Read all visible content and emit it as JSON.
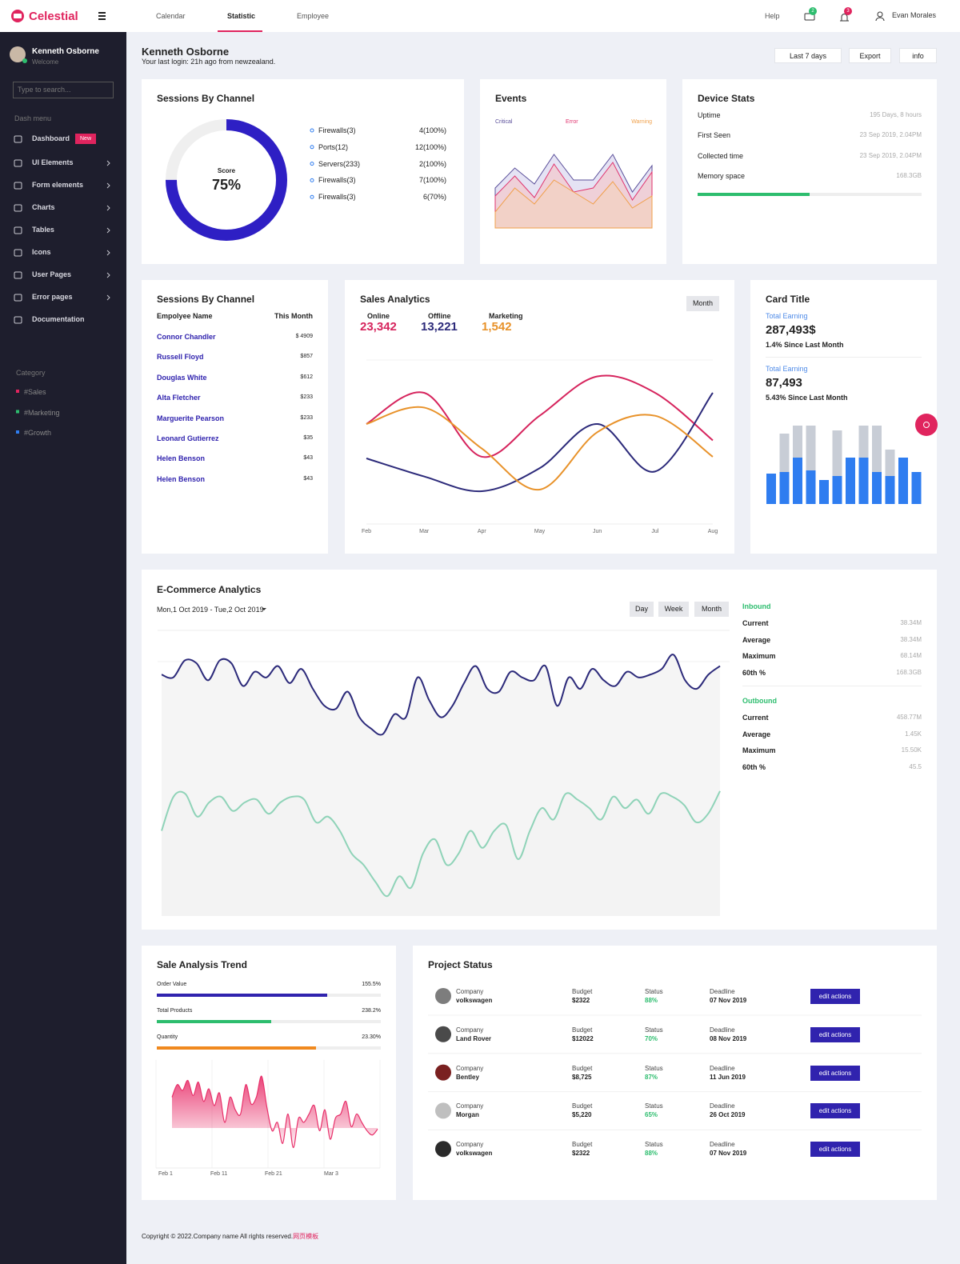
{
  "topbar": {
    "brand": "Celestial",
    "nav": [
      "Calendar",
      "Statistic",
      "Employee"
    ],
    "help": "Help",
    "message_badge": 2,
    "notification_badge": 3,
    "user": "Evan Morales"
  },
  "sidebar": {
    "user": "Kenneth Osborne",
    "greeting": "Welcome",
    "search_placeholder": "Type to search...",
    "menu_title": "Dash menu",
    "menu": [
      {
        "label": "Dashboard",
        "badge": "New"
      },
      {
        "label": "UI Elements"
      },
      {
        "label": "Form elements"
      },
      {
        "label": "Charts"
      },
      {
        "label": "Tables"
      },
      {
        "label": "Icons"
      },
      {
        "label": "User Pages"
      },
      {
        "label": "Error pages"
      },
      {
        "label": "Documentation"
      }
    ],
    "category_title": "Category",
    "categories": [
      "#Sales",
      "#Marketing",
      "#Growth"
    ]
  },
  "header": {
    "title": "Kenneth Osborne",
    "subtitle": "Your last login: 21h ago from newzealand.",
    "buttons": [
      "Last 7 days",
      "Export",
      "info"
    ]
  },
  "sessions": {
    "title": "Sessions By Channel",
    "score_label": "Score",
    "score": 75,
    "score_text": "75%",
    "channels": [
      {
        "name": "Firewalls(3)",
        "value": "4(100%)"
      },
      {
        "name": "Ports(12)",
        "value": "12(100%)"
      },
      {
        "name": "Servers(233)",
        "value": "2(100%)"
      },
      {
        "name": "Firewalls(3)",
        "value": "7(100%)"
      },
      {
        "name": "Firewalls(3)",
        "value": "6(70%)"
      }
    ]
  },
  "events": {
    "title": "Events",
    "ylim": [
      0,
      100
    ],
    "series": [
      {
        "name": "Critical",
        "color": "#5a4f9a",
        "fill": "#dcdaf0",
        "values": [
          50,
          75,
          55,
          92,
          60,
          60,
          92,
          45,
          78
        ]
      },
      {
        "name": "Error",
        "color": "#e0336e",
        "fill": "#f2c9cf",
        "values": [
          40,
          65,
          38,
          80,
          45,
          50,
          82,
          35,
          70
        ]
      },
      {
        "name": "Warning",
        "color": "#f0a04b",
        "fill": "#f3d2c2",
        "values": [
          20,
          50,
          30,
          60,
          45,
          30,
          58,
          25,
          40
        ]
      }
    ]
  },
  "device_stats": {
    "title": "Device Stats",
    "rows": [
      {
        "label": "Uptime",
        "value": "195 Days, 8 hours"
      },
      {
        "label": "First Seen",
        "value": "23 Sep 2019, 2.04PM"
      },
      {
        "label": "Collected time",
        "value": "23 Sep 2019, 2.04PM"
      },
      {
        "label": "Memory space",
        "value": "168.3GB"
      }
    ],
    "memory_used": 50
  },
  "employees": {
    "title": "Sessions By Channel",
    "headers": [
      "Empolyee Name",
      "This Month"
    ],
    "rows": [
      [
        "Connor Chandler",
        "$ 4909"
      ],
      [
        "Russell Floyd",
        "$857"
      ],
      [
        "Douglas White",
        "$612"
      ],
      [
        "Alta Fletcher",
        "$233"
      ],
      [
        "Marguerite Pearson",
        "$233"
      ],
      [
        "Leonard Gutierrez",
        "$35"
      ],
      [
        "Helen Benson",
        "$43"
      ],
      [
        "Helen Benson",
        "$43"
      ]
    ]
  },
  "sales_analytics": {
    "title": "Sales Analytics",
    "button": "Month",
    "categories": [
      "Feb",
      "Mar",
      "Apr",
      "May",
      "Jun",
      "Jul",
      "Aug"
    ],
    "ylim": [
      0,
      100
    ],
    "series": [
      {
        "name": "Online",
        "total": "23,342",
        "color": "#d6245d",
        "values": [
          61,
          80,
          41,
          66,
          90,
          80,
          51
        ]
      },
      {
        "name": "Offline",
        "total": "13,221",
        "color": "#2c2a7a",
        "values": [
          40,
          29,
          20,
          34,
          61,
          32,
          80
        ]
      },
      {
        "name": "Marketing",
        "total": "1,542",
        "color": "#e8922a",
        "values": [
          61,
          71,
          46,
          21,
          56,
          66,
          41
        ]
      }
    ]
  },
  "card": {
    "title": "Card Title",
    "earnings": [
      {
        "label": "Total Earning",
        "value": "287,493$",
        "change": "1.4% Since Last Month"
      },
      {
        "label": "Total Earning",
        "value": "87,493",
        "change": "5.43% Since Last Month"
      }
    ],
    "ylim": [
      0,
      100
    ],
    "totals": [
      30,
      88,
      98,
      98,
      30,
      92,
      58,
      98,
      98,
      68,
      58,
      30
    ],
    "values": [
      38,
      40,
      58,
      42,
      30,
      35,
      58,
      58,
      40,
      35,
      58,
      40
    ],
    "total_color": "#c8cdd6",
    "value_color": "#2f7df0"
  },
  "ecommerce": {
    "title": "E-Commerce Analytics",
    "date_range": "Mon,1 Oct 2019 - Tue,2 Oct 2019",
    "buttons": [
      "Day",
      "Week",
      "Month"
    ],
    "ylim": [
      0,
      100
    ],
    "inbound": {
      "title": "Inbound",
      "color": "#2c2a7a",
      "values": [
        85,
        84,
        90,
        89,
        83,
        90,
        89,
        81,
        86,
        84,
        88,
        82,
        87,
        80,
        74,
        73,
        79,
        70,
        66,
        64,
        71,
        70,
        84,
        76,
        70,
        74,
        82,
        88,
        80,
        79,
        86,
        84,
        83,
        88,
        74,
        84,
        80,
        87,
        83,
        81,
        86,
        84,
        85,
        87,
        92,
        83,
        80,
        85,
        88
      ],
      "stats": [
        [
          "Current",
          "38.34M"
        ],
        [
          "Average",
          "38.34M"
        ],
        [
          "Maximum",
          "68.14M"
        ],
        [
          "60th %",
          "168.3GB"
        ]
      ]
    },
    "outbound": {
      "title": "Outbound",
      "color": "#8fd3b8",
      "values": [
        30,
        42,
        43,
        35,
        40,
        42,
        37,
        40,
        41,
        36,
        40,
        42,
        41,
        33,
        35,
        30,
        22,
        18,
        12,
        7,
        14,
        10,
        22,
        27,
        18,
        22,
        30,
        24,
        30,
        32,
        20,
        30,
        38,
        34,
        43,
        41,
        38,
        34,
        42,
        38,
        41,
        36,
        43,
        42,
        39,
        33,
        36,
        44
      ],
      "stats": [
        [
          "Current",
          "458.77M"
        ],
        [
          "Average",
          "1.45K"
        ],
        [
          "Maximum",
          "15.50K"
        ],
        [
          "60th %",
          "45.5"
        ]
      ]
    }
  },
  "sale_trend": {
    "title": "Sale Analysis Trend",
    "progress": [
      {
        "label": "Order Value",
        "value": "155.5%",
        "fill": 76,
        "color": "#3023ae"
      },
      {
        "label": "Total Products",
        "value": "238.2%",
        "fill": 51,
        "color": "#2dbd6e"
      },
      {
        "label": "Quantity",
        "value": "23.30%",
        "fill": 71,
        "color": "#f0891e"
      }
    ],
    "x_labels": [
      "Feb 1",
      "Feb 11",
      "Feb 21",
      "Mar 3"
    ],
    "ylim": [
      0,
      100
    ],
    "color": "#e8306a",
    "values": [
      70,
      85,
      78,
      90,
      72,
      88,
      65,
      80,
      60,
      75,
      40,
      70,
      55,
      50,
      85,
      62,
      70,
      95,
      58,
      30,
      40,
      15,
      50,
      10,
      45,
      40,
      50,
      60,
      30,
      55,
      20,
      45,
      50,
      65,
      35,
      50,
      40,
      30,
      25,
      32
    ]
  },
  "project_status": {
    "title": "Project Status",
    "labels": {
      "company": "Company",
      "budget": "Budget",
      "status": "Status",
      "deadline": "Deadline"
    },
    "action": "edit actions",
    "rows": [
      {
        "company": "volkswagen",
        "budget": "$2322",
        "status": "88%",
        "deadline": "07 Nov 2019"
      },
      {
        "company": "Land Rover",
        "budget": "$12022",
        "status": "70%",
        "deadline": "08 Nov 2019"
      },
      {
        "company": "Bentley",
        "budget": "$8,725",
        "status": "87%",
        "deadline": "11 Jun 2019"
      },
      {
        "company": "Morgan",
        "budget": "$5,220",
        "status": "65%",
        "deadline": "26 Oct 2019"
      },
      {
        "company": "volkswagen",
        "budget": "$2322",
        "status": "88%",
        "deadline": "07 Nov 2019"
      }
    ]
  },
  "footer": {
    "text": "Copyright © 2022.Company name All rights reserved.",
    "link": "网页模板"
  }
}
